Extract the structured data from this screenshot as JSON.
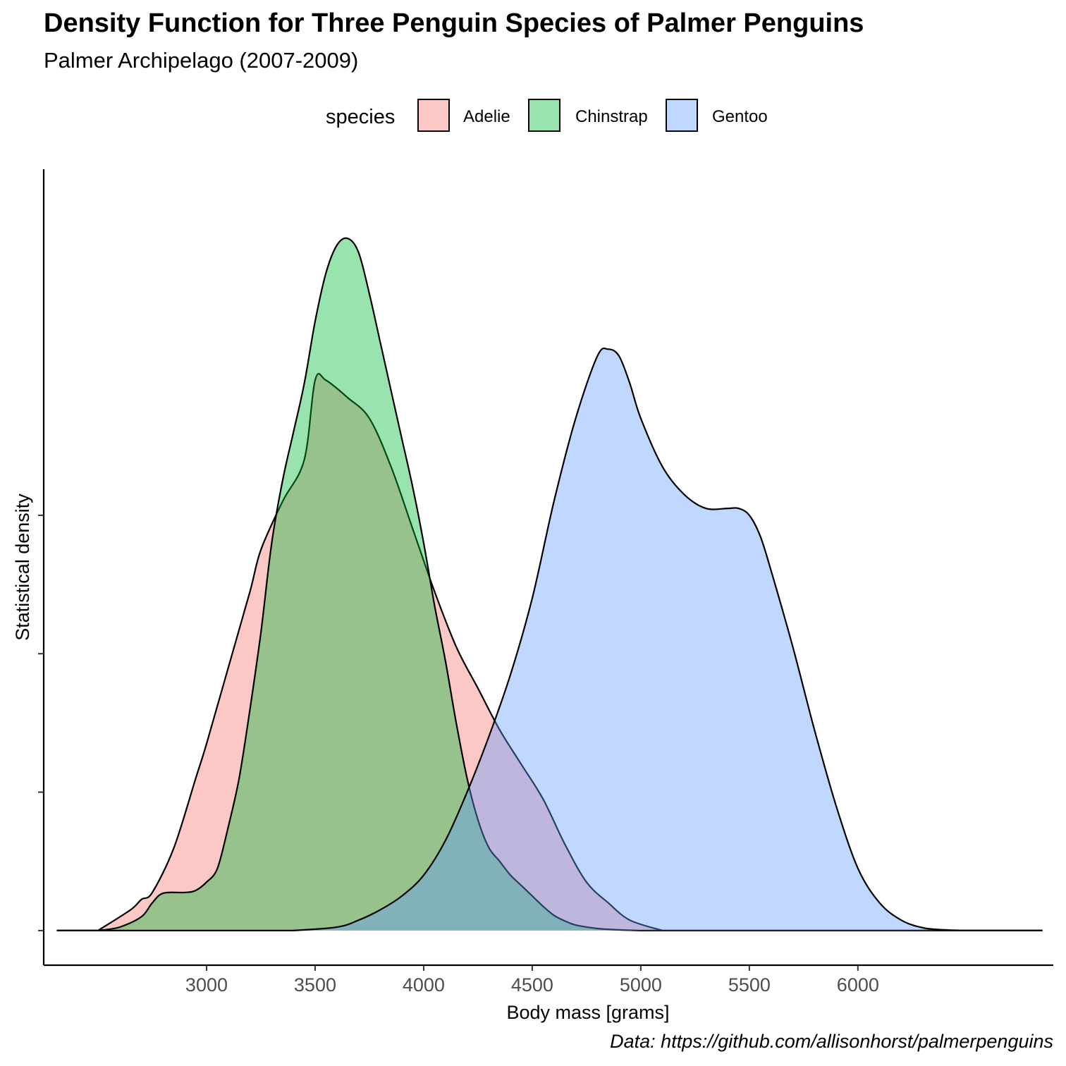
{
  "title": "Density Function for Three Penguin Species of Palmer Penguins",
  "subtitle": "Palmer Archipelago (2007-2009)",
  "caption": "Data: https://github.com/allisonhorst/palmerpenguins",
  "legend": {
    "title": "species",
    "items": [
      {
        "label": "Adelie",
        "color": "#F8766D"
      },
      {
        "label": "Chinstrap",
        "color": "#00BA38"
      },
      {
        "label": "Gentoo",
        "color": "#619CFF"
      }
    ]
  },
  "chart_data": {
    "type": "area",
    "title": "Density Function for Three Penguin Species of Palmer Penguins",
    "subtitle": "Palmer Archipelago (2007-2009)",
    "xlabel": "Body mass [grams]",
    "ylabel": "Statistical density",
    "xlim": [
      2250,
      6900
    ],
    "ylim": [
      -5e-05,
      0.0011
    ],
    "x_ticks": [
      3000,
      3500,
      4000,
      4500,
      5000,
      5500,
      6000
    ],
    "y_ticks": [
      0,
      0.0002,
      0.0004,
      0.0006
    ],
    "y_tick_labels_shown": false,
    "grid": false,
    "legend_position": "top",
    "fill_alpha": 0.4,
    "series": [
      {
        "name": "Adelie",
        "color": "#F8766D",
        "x": [
          2500,
          2650,
          2700,
          2750,
          2850,
          2950,
          3000,
          3100,
          3200,
          3250,
          3350,
          3450,
          3500,
          3550,
          3650,
          3750,
          3850,
          3950,
          4050,
          4150,
          4250,
          4350,
          4450,
          4550,
          4650,
          4750,
          4850,
          4950,
          5100
        ],
        "y": [
          0,
          3e-05,
          4.5e-05,
          5.5e-05,
          0.00012,
          0.00022,
          0.00027,
          0.00038,
          0.00049,
          0.00055,
          0.00062,
          0.00068,
          0.000795,
          0.000795,
          0.00077,
          0.00074,
          0.00067,
          0.00058,
          0.00049,
          0.00041,
          0.00035,
          0.00029,
          0.00024,
          0.00019,
          0.000125,
          7e-05,
          4e-05,
          1.5e-05,
          0
        ]
      },
      {
        "name": "Chinstrap",
        "color": "#00BA38",
        "x": [
          2500,
          2600,
          2700,
          2750,
          2800,
          2900,
          2950,
          3000,
          3050,
          3100,
          3150,
          3200,
          3250,
          3300,
          3350,
          3400,
          3450,
          3500,
          3550,
          3600,
          3650,
          3700,
          3750,
          3800,
          3850,
          3900,
          3950,
          4000,
          4050,
          4100,
          4150,
          4200,
          4250,
          4300,
          4350,
          4400,
          4450,
          4500,
          4550,
          4600,
          4650,
          4700,
          4800,
          4900,
          5000
        ],
        "y": [
          0,
          5e-06,
          2e-05,
          4e-05,
          5.4e-05,
          5.5e-05,
          5.8e-05,
          7e-05,
          9e-05,
          0.00015,
          0.00022,
          0.00032,
          0.00043,
          0.00056,
          0.00065,
          0.00072,
          0.00079,
          0.00088,
          0.00095,
          0.00099,
          0.001,
          0.00098,
          0.00092,
          0.00085,
          0.00078,
          0.00071,
          0.00064,
          0.00056,
          0.00047,
          0.00039,
          0.0003,
          0.00022,
          0.00016,
          0.00012,
          0.0001,
          8e-05,
          6.5e-05,
          5e-05,
          3.5e-05,
          2.2e-05,
          1.4e-05,
          8e-06,
          3e-06,
          1e-06,
          0
        ]
      },
      {
        "name": "Gentoo",
        "color": "#619CFF",
        "x": [
          3400,
          3600,
          3700,
          3800,
          3900,
          4000,
          4100,
          4200,
          4300,
          4400,
          4500,
          4600,
          4700,
          4800,
          4850,
          4900,
          4950,
          5000,
          5100,
          5200,
          5300,
          5400,
          5450,
          5500,
          5550,
          5600,
          5700,
          5800,
          5900,
          6000,
          6100,
          6200,
          6300,
          6400,
          6500
        ],
        "y": [
          0,
          5e-06,
          1.5e-05,
          3e-05,
          5e-05,
          8e-05,
          0.00013,
          0.0002,
          0.00028,
          0.00037,
          0.00048,
          0.00062,
          0.00074,
          0.00083,
          0.00084,
          0.00083,
          0.00079,
          0.00074,
          0.00067,
          0.00063,
          0.00061,
          0.00061,
          0.00061,
          0.0006,
          0.00057,
          0.00052,
          0.00041,
          0.00029,
          0.00018,
          9e-05,
          4e-05,
          1.5e-05,
          4e-06,
          1e-06,
          0
        ]
      }
    ]
  }
}
